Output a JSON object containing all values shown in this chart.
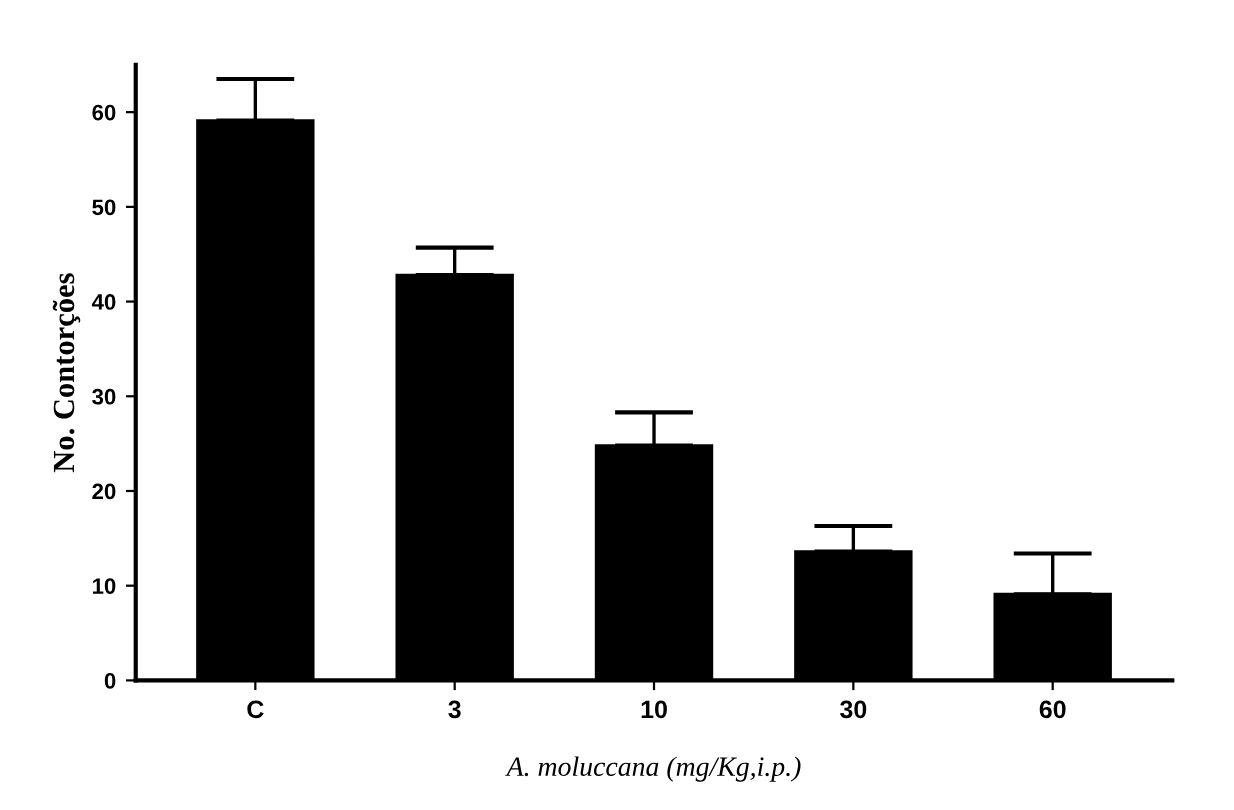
{
  "chart_data": {
    "type": "bar",
    "categories": [
      "C",
      "3",
      "10",
      "30",
      "60"
    ],
    "values": [
      59.1,
      42.8,
      24.8,
      13.6,
      9.1
    ],
    "errors": [
      [
        59.1,
        63.5
      ],
      [
        42.8,
        45.7
      ],
      [
        24.8,
        28.3
      ],
      [
        13.6,
        16.3
      ],
      [
        9.1,
        13.4
      ]
    ],
    "color": "#000000",
    "ylim": [
      0,
      65
    ],
    "yticks": [
      0,
      10,
      20,
      30,
      40,
      50,
      60
    ],
    "grid": false,
    "xlabel": "A. moluccana (mg/Kg,i.p.)",
    "ylabel": "No. Contorções"
  }
}
